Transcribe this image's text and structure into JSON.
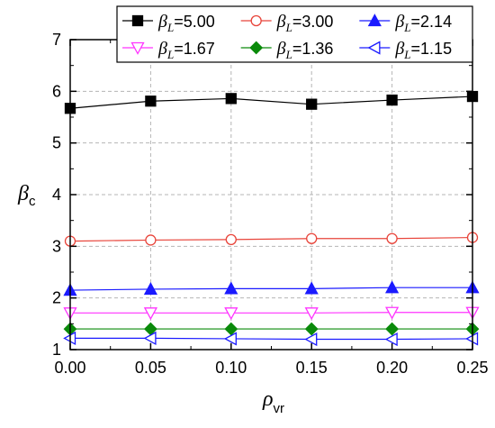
{
  "chart_data": {
    "type": "line",
    "xlabel": {
      "main": "ρ",
      "sub": "vr"
    },
    "ylabel": {
      "main": "β",
      "sub": "c"
    },
    "xlim": [
      0,
      0.25
    ],
    "ylim": [
      1,
      7
    ],
    "x": [
      0.0,
      0.05,
      0.1,
      0.15,
      0.2,
      0.25
    ],
    "xticks": [
      "0.00",
      "0.05",
      "0.10",
      "0.15",
      "0.20",
      "0.25"
    ],
    "yticks": [
      "1",
      "2",
      "3",
      "4",
      "5",
      "6",
      "7"
    ],
    "grid": true,
    "legend_position": "top",
    "series": [
      {
        "name": "=5.00",
        "legend_prefix": "β",
        "legend_sub": "L",
        "color": "#000000",
        "marker": "square-filled",
        "values": [
          5.67,
          5.81,
          5.86,
          5.75,
          5.83,
          5.9
        ]
      },
      {
        "name": "=3.00",
        "legend_prefix": "β",
        "legend_sub": "L",
        "color": "#e8443a",
        "marker": "circle-open",
        "values": [
          3.1,
          3.12,
          3.13,
          3.15,
          3.15,
          3.17
        ]
      },
      {
        "name": "=2.14",
        "legend_prefix": "β",
        "legend_sub": "L",
        "color": "#1a1aff",
        "marker": "triangle-up-filled",
        "values": [
          2.15,
          2.17,
          2.18,
          2.18,
          2.2,
          2.2
        ]
      },
      {
        "name": "=1.67",
        "legend_prefix": "β",
        "legend_sub": "L",
        "color": "#ff33ff",
        "marker": "triangle-down-open",
        "values": [
          1.71,
          1.71,
          1.71,
          1.71,
          1.72,
          1.72
        ]
      },
      {
        "name": "=1.36",
        "legend_prefix": "β",
        "legend_sub": "L",
        "color": "#0a8a0a",
        "marker": "diamond-filled",
        "values": [
          1.4,
          1.4,
          1.4,
          1.4,
          1.4,
          1.4
        ]
      },
      {
        "name": "=1.15",
        "legend_prefix": "β",
        "legend_sub": "L",
        "color": "#1a1aff",
        "marker": "triangle-left-open",
        "values": [
          1.22,
          1.22,
          1.21,
          1.2,
          1.2,
          1.21
        ]
      }
    ]
  }
}
